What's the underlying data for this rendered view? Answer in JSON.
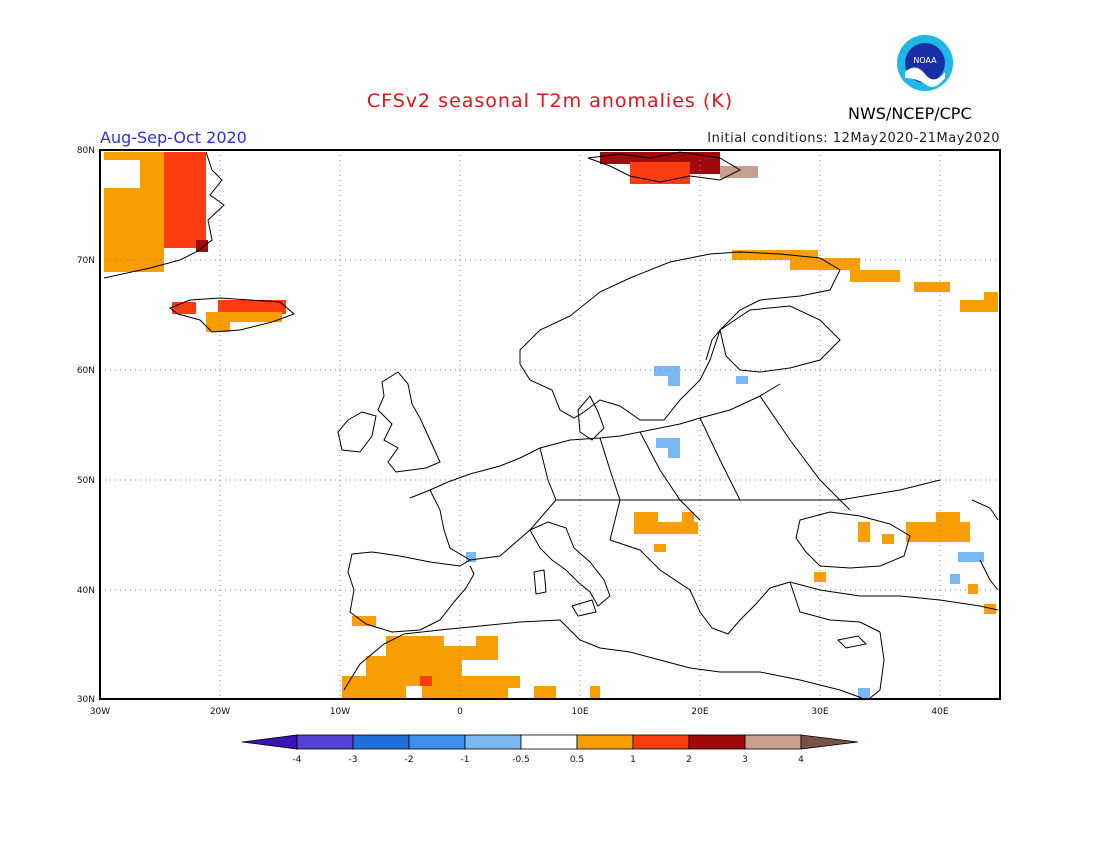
{
  "title": "CFSv2 seasonal T2m anomalies (K)",
  "period": "Aug-Sep-Oct 2020",
  "initial_conditions": "Initial conditions: 12May2020-21May2020",
  "organization": "NWS/NCEP/CPC",
  "logo_text": "NOAA",
  "lat_labels": [
    "80N",
    "70N",
    "60N",
    "50N",
    "40N",
    "30N"
  ],
  "lon_labels": [
    "30W",
    "20W",
    "10W",
    "0",
    "10E",
    "20E",
    "30E",
    "40E"
  ],
  "colorbar": {
    "labels": [
      "-4",
      "-3",
      "-2",
      "-1",
      "-0.5",
      "0.5",
      "1",
      "2",
      "3",
      "4"
    ],
    "colors": [
      "#3a13b8",
      "#5542d6",
      "#1f6fd8",
      "#3d8fee",
      "#7ab8f5",
      "#ffffff",
      "#f99e00",
      "#fb3c0e",
      "#a10a0a",
      "#c69f91",
      "#7a5246"
    ]
  },
  "anomaly_colors": {
    "orange": "#f99e00",
    "red": "#fb3c0e",
    "darkred": "#a10a0a",
    "tan": "#c69f91",
    "lightblue": "#7ab8f5"
  }
}
